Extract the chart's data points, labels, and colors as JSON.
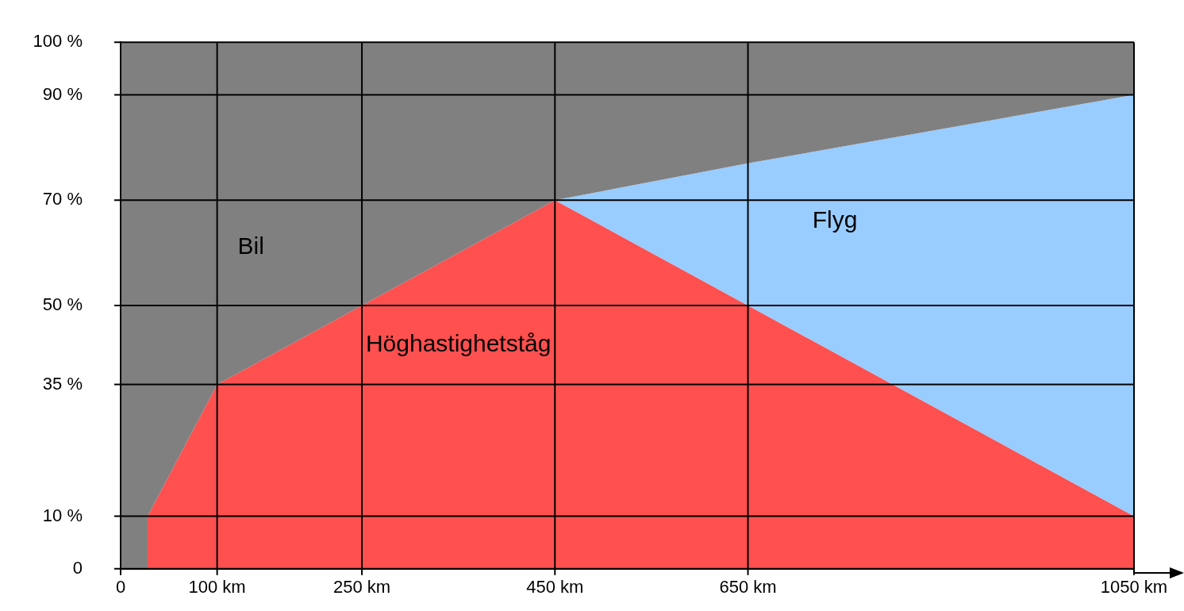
{
  "chart_data": {
    "type": "area",
    "stacked": true,
    "x": [
      0,
      28,
      28,
      100,
      250,
      450,
      650,
      1050
    ],
    "series": [
      {
        "name": "Höghastighetståg",
        "color": "#ff5050",
        "values": [
          0,
          0,
          10,
          35,
          50,
          70,
          50,
          10
        ]
      },
      {
        "name": "Flyg",
        "color": "#99ccff",
        "values": [
          0,
          0,
          0,
          0,
          0,
          0,
          27,
          80
        ]
      },
      {
        "name": "Bil",
        "color": "#808080",
        "values": [
          100,
          100,
          90,
          65,
          50,
          30,
          23,
          10
        ]
      }
    ],
    "xlim": [
      0,
      1050
    ],
    "xticks": [
      0,
      {
        "value": 100,
        "label": "100 km"
      },
      {
        "value": 250,
        "label": "250 km"
      },
      {
        "value": 450,
        "label": "450 km"
      },
      {
        "value": 650,
        "label": "650 km"
      },
      {
        "value": 1050,
        "label": "1050 km"
      }
    ],
    "ylim": [
      0,
      100
    ],
    "yticks": [
      0,
      {
        "value": 10,
        "label": "10 %"
      },
      {
        "value": 35,
        "label": "35 %"
      },
      {
        "value": 50,
        "label": "50 %"
      },
      {
        "value": 70,
        "label": "70 %"
      },
      {
        "value": 90,
        "label": "90 %"
      },
      {
        "value": 100,
        "label": "100 %"
      }
    ],
    "grid": true,
    "legend": false
  }
}
